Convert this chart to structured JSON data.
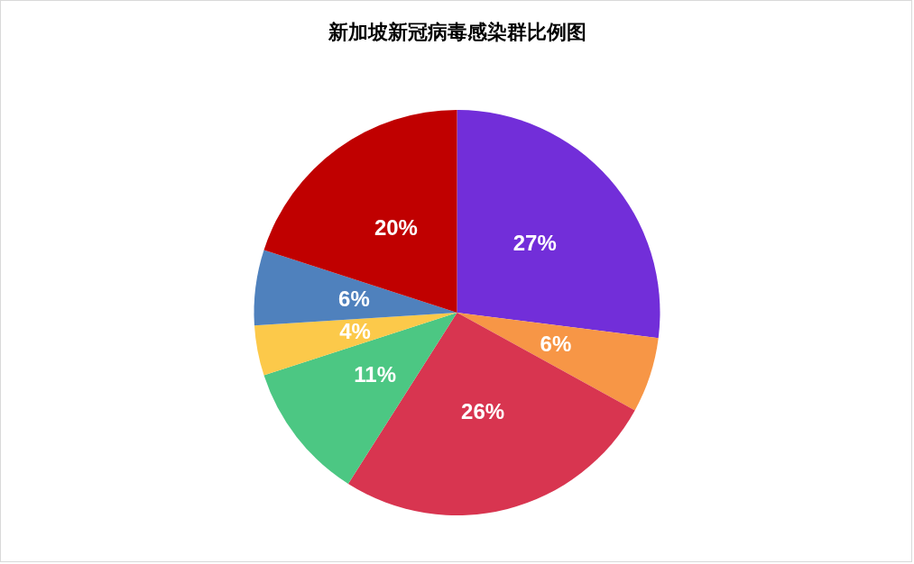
{
  "chart_data": {
    "type": "pie",
    "title": "新加坡新冠病毒感染群比例图",
    "categories": [
      null,
      null,
      null,
      null,
      null,
      null,
      null
    ],
    "values": [
      27,
      6,
      26,
      11,
      4,
      6,
      20
    ],
    "value_labels": [
      "27%",
      "6%",
      "26%",
      "11%",
      "4%",
      "6%",
      "20%"
    ],
    "colors": [
      "#722ed9",
      "#f79646",
      "#d83550",
      "#4cc783",
      "#fcc94a",
      "#4f81bd",
      "#c00000"
    ]
  }
}
